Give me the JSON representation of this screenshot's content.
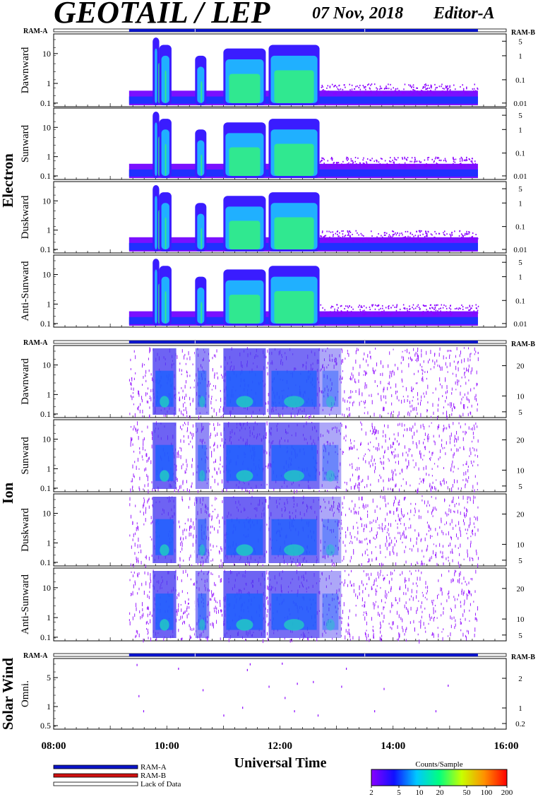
{
  "header": {
    "title": "GEOTAIL / LEP",
    "date": "07 Nov, 2018",
    "editor": "Editor-A"
  },
  "ram_labels": {
    "left": "RAM-A",
    "right": "RAM-B"
  },
  "chart_data": {
    "type": "heatmap",
    "x_axis": {
      "label": "Universal Time",
      "range": [
        "08:00",
        "16:00"
      ],
      "ticks": [
        "08:00",
        "10:00",
        "12:00",
        "14:00",
        "16:00"
      ],
      "minor_ticks_per_hour": 5
    },
    "data_coverage": {
      "mode": "RAM-A",
      "start": "09:20",
      "end": "15:30",
      "mode_change_markers": [
        "10:30",
        "13:30"
      ]
    },
    "groups": [
      {
        "name": "Electron",
        "left_ticks": [
          "10",
          "1",
          "0.1"
        ],
        "right_ticks": [
          "5",
          "1",
          "0.1",
          "0.01"
        ],
        "panels": [
          {
            "name": "Dawnward"
          },
          {
            "name": "Sunward"
          },
          {
            "name": "Duskward"
          },
          {
            "name": "Anti-Sunward"
          }
        ],
        "activity_intervals": [
          {
            "start": "09:45",
            "end": "09:52",
            "level": 0.95
          },
          {
            "start": "09:52",
            "end": "10:05",
            "level": 0.85
          },
          {
            "start": "10:30",
            "end": "10:42",
            "level": 0.7
          },
          {
            "start": "11:00",
            "end": "11:45",
            "level": 0.8
          },
          {
            "start": "11:48",
            "end": "12:42",
            "level": 0.85
          }
        ]
      },
      {
        "name": "Ion",
        "left_ticks": [
          "10",
          "1",
          "0.1"
        ],
        "right_ticks": [
          "20",
          "10",
          "5"
        ],
        "panels": [
          {
            "name": "Dawnward"
          },
          {
            "name": "Sunward"
          },
          {
            "name": "Duskward"
          },
          {
            "name": "Anti-Sunward"
          }
        ],
        "activity_intervals": [
          {
            "start": "09:45",
            "end": "10:10",
            "level": 0.8
          },
          {
            "start": "10:30",
            "end": "10:45",
            "level": 0.6
          },
          {
            "start": "11:00",
            "end": "11:45",
            "level": 0.8
          },
          {
            "start": "11:48",
            "end": "12:42",
            "level": 0.75
          },
          {
            "start": "12:42",
            "end": "13:05",
            "level": 0.45
          }
        ]
      },
      {
        "name": "Solar Wind",
        "left_ticks": [
          "5",
          "1",
          "0.5"
        ],
        "right_ticks": [
          "2",
          "1",
          "0.2"
        ],
        "panels": [
          {
            "name": "Omni."
          }
        ],
        "scatter_points": [
          {
            "t": "09:28",
            "v": 5.6
          },
          {
            "t": "10:12",
            "v": 4.6
          },
          {
            "t": "10:38",
            "v": 1.5
          },
          {
            "t": "11:20",
            "v": 0.6
          },
          {
            "t": "11:28",
            "v": 5.8
          },
          {
            "t": "11:25",
            "v": 4.3
          },
          {
            "t": "11:48",
            "v": 1.8
          },
          {
            "t": "12:02",
            "v": 6.0
          },
          {
            "t": "12:05",
            "v": 1.0
          },
          {
            "t": "12:18",
            "v": 2.1
          },
          {
            "t": "12:35",
            "v": 2.3
          },
          {
            "t": "13:05",
            "v": 1.8
          },
          {
            "t": "13:10",
            "v": 4.6
          },
          {
            "t": "13:50",
            "v": 1.6
          },
          {
            "t": "14:58",
            "v": 1.9
          },
          {
            "t": "09:30",
            "v": 1.1
          },
          {
            "t": "09:35",
            "v": 0.5
          },
          {
            "t": "11:00",
            "v": 0.4
          },
          {
            "t": "12:15",
            "v": 0.5
          },
          {
            "t": "12:40",
            "v": 0.4
          },
          {
            "t": "13:40",
            "v": 0.5
          },
          {
            "t": "14:45",
            "v": 0.5
          }
        ]
      }
    ]
  },
  "legend": {
    "items": [
      {
        "label": "RAM-A",
        "color": "#0a14c8"
      },
      {
        "label": "RAM-B",
        "color": "#d01010"
      },
      {
        "label": "Lack of Data",
        "color": "#ffffff"
      }
    ]
  },
  "colorbar": {
    "title": "Counts/Sample",
    "ticks": [
      "2",
      "5",
      "10",
      "20",
      "50",
      "100",
      "200"
    ],
    "colors": [
      "#8a00ff",
      "#1010ff",
      "#00c8ff",
      "#00ff80",
      "#c8ff00",
      "#ff9000",
      "#ff0000"
    ]
  }
}
